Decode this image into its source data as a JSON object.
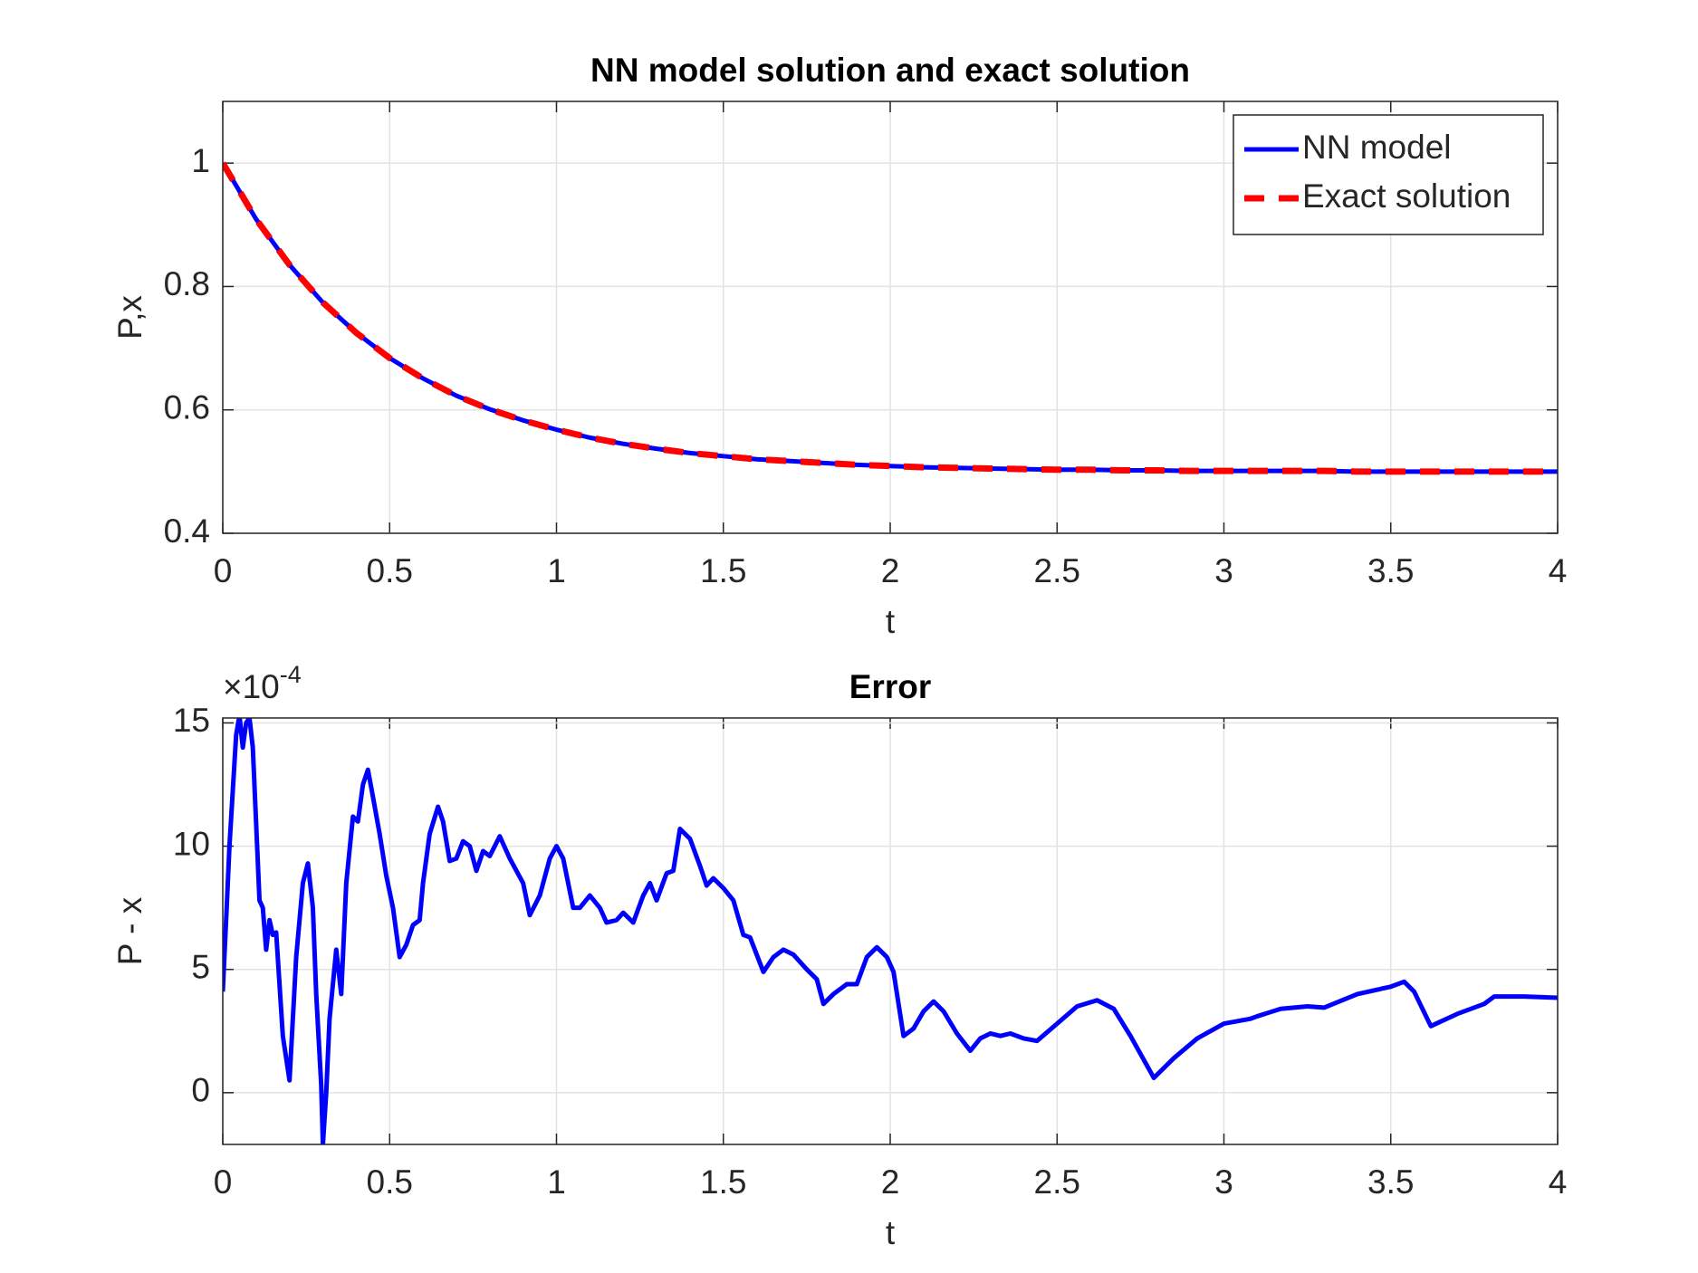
{
  "chart_data": [
    {
      "type": "line",
      "title": "NN model solution and exact solution",
      "xlabel": "t",
      "ylabel": "P,x",
      "xlim": [
        0,
        4
      ],
      "ylim": [
        0.4,
        1.1
      ],
      "xticks": [
        0,
        0.5,
        1,
        1.5,
        2,
        2.5,
        3,
        3.5,
        4
      ],
      "yticks": [
        0.4,
        0.6,
        0.8,
        1
      ],
      "grid": true,
      "legend": "northeast",
      "x": [
        0,
        0.1,
        0.2,
        0.3,
        0.4,
        0.5,
        0.6,
        0.7,
        0.8,
        0.9,
        1,
        1.1,
        1.2,
        1.3,
        1.4,
        1.5,
        1.6,
        1.7,
        1.8,
        1.9,
        2,
        2.1,
        2.2,
        2.3,
        2.4,
        2.5,
        2.6,
        2.7,
        2.8,
        2.9,
        3,
        3.1,
        3.2,
        3.3,
        3.4,
        3.5,
        3.6,
        3.7,
        3.8,
        3.9,
        4
      ],
      "series": [
        {
          "name": "NN model",
          "color": "#0000ff",
          "dash": false,
          "values": [
            1,
            0.909,
            0.835,
            0.774,
            0.725,
            0.684,
            0.651,
            0.623,
            0.601,
            0.583,
            0.568,
            0.555,
            0.545,
            0.537,
            0.53,
            0.525,
            0.52,
            0.517,
            0.514,
            0.511,
            0.509,
            0.507,
            0.506,
            0.505,
            0.504,
            0.503,
            0.503,
            0.502,
            0.502,
            0.501,
            0.501,
            0.501,
            0.501,
            0.501,
            0.5,
            0.5,
            0.5,
            0.5,
            0.5,
            0.5,
            0.5
          ]
        },
        {
          "name": "Exact solution",
          "color": "#ff0000",
          "dash": true,
          "values": [
            1,
            0.909,
            0.835,
            0.774,
            0.725,
            0.684,
            0.651,
            0.623,
            0.601,
            0.583,
            0.568,
            0.555,
            0.545,
            0.537,
            0.53,
            0.525,
            0.52,
            0.517,
            0.514,
            0.511,
            0.509,
            0.507,
            0.506,
            0.505,
            0.504,
            0.503,
            0.503,
            0.502,
            0.502,
            0.501,
            0.501,
            0.501,
            0.501,
            0.501,
            0.5,
            0.5,
            0.5,
            0.5,
            0.5,
            0.5,
            0.5
          ]
        }
      ]
    },
    {
      "type": "line",
      "title": "Error",
      "xlabel": "t",
      "ylabel": "P - x",
      "axis_multiplier": {
        "base": "×10",
        "exponent": "-4"
      },
      "xlim": [
        0,
        4
      ],
      "ylim": [
        -2.1,
        15.2
      ],
      "xticks": [
        0,
        0.5,
        1,
        1.5,
        2,
        2.5,
        3,
        3.5,
        4
      ],
      "yticks": [
        0,
        5,
        10,
        15
      ],
      "grid": true,
      "x": [
        0,
        0.01,
        0.02,
        0.04,
        0.05,
        0.06,
        0.07,
        0.08,
        0.09,
        0.11,
        0.12,
        0.13,
        0.14,
        0.15,
        0.16,
        0.18,
        0.2,
        0.22,
        0.24,
        0.255,
        0.27,
        0.28,
        0.295,
        0.3,
        0.31,
        0.32,
        0.34,
        0.355,
        0.37,
        0.39,
        0.405,
        0.42,
        0.435,
        0.45,
        0.47,
        0.49,
        0.51,
        0.53,
        0.55,
        0.57,
        0.59,
        0.6,
        0.62,
        0.645,
        0.66,
        0.68,
        0.7,
        0.72,
        0.74,
        0.76,
        0.78,
        0.8,
        0.83,
        0.86,
        0.88,
        0.9,
        0.92,
        0.95,
        0.98,
        1,
        1.02,
        1.05,
        1.07,
        1.1,
        1.13,
        1.15,
        1.18,
        1.2,
        1.23,
        1.26,
        1.28,
        1.3,
        1.33,
        1.35,
        1.37,
        1.4,
        1.43,
        1.45,
        1.47,
        1.5,
        1.53,
        1.56,
        1.58,
        1.62,
        1.65,
        1.68,
        1.71,
        1.75,
        1.78,
        1.8,
        1.83,
        1.87,
        1.9,
        1.93,
        1.96,
        1.99,
        2.01,
        2.04,
        2.07,
        2.1,
        2.13,
        2.16,
        2.2,
        2.24,
        2.27,
        2.3,
        2.33,
        2.36,
        2.4,
        2.44,
        2.5,
        2.56,
        2.62,
        2.67,
        2.72,
        2.79,
        2.85,
        2.92,
        3,
        3.08,
        3.1,
        3.17,
        3.25,
        3.3,
        3.4,
        3.5,
        3.54,
        3.57,
        3.62,
        3.7,
        3.78,
        3.81,
        3.9,
        4
      ],
      "series": [
        {
          "color": "#0000ff",
          "dash": false,
          "values": [
            4.1,
            7,
            10,
            14.5,
            15.3,
            14,
            15,
            15.2,
            14,
            7.8,
            7.5,
            5.8,
            7.0,
            6.4,
            6.5,
            2.3,
            0.5,
            5.5,
            8.5,
            9.3,
            7.5,
            4.0,
            0.3,
            -2.1,
            0,
            3.0,
            5.8,
            4.0,
            8.5,
            11.2,
            11.0,
            12.5,
            13.1,
            12.0,
            10.5,
            8.8,
            7.5,
            5.5,
            6.0,
            6.8,
            7.0,
            8.5,
            10.5,
            11.6,
            11.0,
            9.4,
            9.5,
            10.2,
            10.0,
            9.0,
            9.8,
            9.6,
            10.4,
            9.5,
            9.0,
            8.5,
            7.2,
            8.0,
            9.5,
            10.0,
            9.5,
            7.5,
            7.5,
            8.0,
            7.5,
            6.9,
            7.0,
            7.3,
            6.9,
            8.0,
            8.5,
            7.8,
            8.9,
            9.0,
            10.7,
            10.3,
            9.2,
            8.4,
            8.7,
            8.3,
            7.8,
            6.4,
            6.3,
            4.9,
            5.5,
            5.8,
            5.6,
            5.0,
            4.6,
            3.6,
            4.0,
            4.4,
            4.4,
            5.5,
            5.9,
            5.5,
            4.9,
            2.3,
            2.6,
            3.3,
            3.7,
            3.3,
            2.4,
            1.7,
            2.2,
            2.4,
            2.3,
            2.4,
            2.2,
            2.1,
            2.8,
            3.5,
            3.75,
            3.4,
            2.3,
            0.6,
            1.4,
            2.2,
            2.8,
            3.0,
            3.1,
            3.4,
            3.5,
            3.45,
            4.0,
            4.3,
            4.5,
            4.1,
            2.7,
            3.2,
            3.6,
            3.9,
            3.9,
            3.85
          ]
        }
      ]
    }
  ]
}
